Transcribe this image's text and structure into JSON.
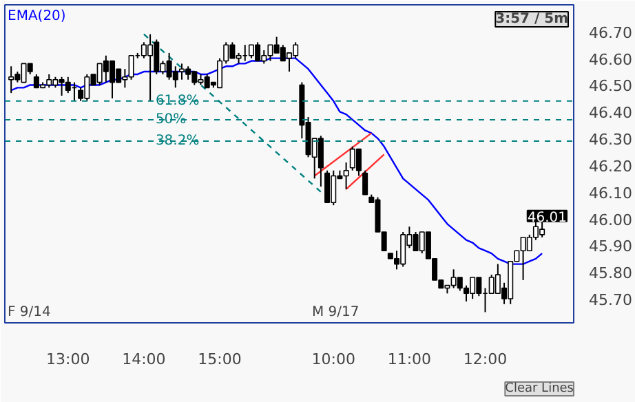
{
  "chart_data": {
    "type": "candlestick",
    "categories": [
      null,
      null,
      null,
      null,
      null,
      null,
      null,
      null,
      null,
      "13:00",
      null,
      null,
      null,
      null,
      null,
      null,
      null,
      null,
      null,
      null,
      null,
      "14:00",
      null,
      null,
      null,
      null,
      null,
      null,
      null,
      null,
      null,
      null,
      null,
      "15:00",
      null,
      null,
      null,
      null,
      null,
      null,
      null,
      null,
      null,
      null,
      null,
      null,
      null,
      null,
      null,
      null,
      null,
      "10:00",
      null,
      null,
      null,
      null,
      null,
      null,
      null,
      null,
      null,
      null,
      null,
      "11:00",
      null,
      null,
      null,
      null,
      null,
      null,
      null,
      null,
      null,
      null,
      null,
      "12:00",
      null,
      null,
      null,
      null,
      null,
      null,
      null,
      null,
      null
    ],
    "ohlc": [
      [
        46.52,
        46.57,
        46.47,
        46.53
      ],
      [
        46.54,
        46.55,
        46.51,
        46.52
      ],
      [
        46.51,
        46.58,
        46.51,
        46.58
      ],
      [
        46.58,
        46.58,
        46.54,
        46.55
      ],
      [
        46.53,
        46.54,
        46.49,
        46.49
      ],
      [
        46.49,
        46.51,
        46.49,
        46.5
      ],
      [
        46.5,
        46.54,
        46.49,
        46.52
      ],
      [
        46.5,
        46.53,
        46.49,
        46.52
      ],
      [
        46.52,
        46.53,
        46.46,
        46.51
      ],
      [
        46.51,
        46.53,
        46.47,
        46.48
      ],
      [
        46.49,
        46.51,
        46.44,
        46.49
      ],
      [
        46.48,
        46.49,
        46.44,
        46.45
      ],
      [
        46.45,
        46.54,
        46.44,
        46.53
      ],
      [
        46.54,
        46.54,
        46.5,
        46.5
      ],
      [
        46.51,
        46.58,
        46.5,
        46.58
      ],
      [
        46.59,
        46.61,
        46.51,
        46.55
      ],
      [
        46.59,
        46.59,
        46.45,
        46.51
      ],
      [
        46.56,
        46.56,
        46.51,
        46.51
      ],
      [
        46.52,
        46.56,
        46.49,
        46.53
      ],
      [
        46.53,
        46.61,
        46.52,
        46.61
      ],
      [
        46.61,
        46.62,
        46.6,
        46.61
      ],
      [
        46.61,
        46.66,
        46.6,
        46.65
      ],
      [
        46.61,
        46.69,
        46.44,
        46.65
      ],
      [
        46.66,
        46.67,
        46.54,
        46.55
      ],
      [
        46.55,
        46.59,
        46.54,
        46.58
      ],
      [
        46.59,
        46.62,
        46.52,
        46.53
      ],
      [
        46.55,
        46.57,
        46.49,
        46.52
      ],
      [
        46.55,
        46.58,
        46.52,
        46.56
      ],
      [
        46.56,
        46.57,
        46.52,
        46.54
      ],
      [
        46.55,
        46.55,
        46.5,
        46.51
      ],
      [
        46.51,
        46.54,
        46.5,
        46.52
      ],
      [
        46.53,
        46.54,
        46.49,
        46.49
      ],
      [
        46.51,
        46.51,
        46.49,
        46.5
      ],
      [
        46.49,
        46.6,
        46.49,
        46.59
      ],
      [
        46.59,
        46.66,
        46.58,
        46.65
      ],
      [
        46.65,
        46.66,
        46.6,
        46.6
      ],
      [
        46.6,
        46.62,
        46.58,
        46.61
      ],
      [
        46.61,
        46.65,
        46.59,
        46.61
      ],
      [
        46.61,
        46.65,
        46.6,
        46.65
      ],
      [
        46.65,
        46.66,
        46.59,
        46.59
      ],
      [
        46.59,
        46.63,
        46.58,
        46.61
      ],
      [
        46.61,
        46.65,
        46.59,
        46.65
      ],
      [
        46.65,
        46.68,
        46.62,
        46.62
      ],
      [
        46.64,
        46.65,
        46.59,
        46.59
      ],
      [
        46.6,
        46.62,
        46.55,
        46.62
      ],
      [
        46.61,
        46.66,
        46.6,
        46.65
      ],
      [
        46.5,
        46.51,
        46.3,
        46.35
      ],
      [
        46.36,
        46.38,
        46.23,
        46.24
      ],
      [
        46.23,
        46.3,
        46.15,
        46.3
      ],
      [
        46.3,
        46.31,
        46.12,
        46.19
      ],
      [
        46.17,
        46.18,
        46.06,
        46.06
      ],
      [
        46.06,
        46.18,
        46.05,
        46.16
      ],
      [
        46.16,
        46.18,
        46.15,
        46.15
      ],
      [
        46.16,
        46.21,
        46.11,
        46.18
      ],
      [
        46.19,
        46.27,
        46.18,
        46.26
      ],
      [
        46.26,
        46.26,
        46.16,
        46.18
      ],
      [
        46.17,
        46.18,
        46.09,
        46.09
      ],
      [
        46.08,
        46.09,
        46.06,
        46.06
      ],
      [
        46.07,
        46.08,
        45.95,
        45.95
      ],
      [
        45.95,
        45.95,
        45.88,
        45.88
      ],
      [
        45.87,
        45.87,
        45.85,
        45.85
      ],
      [
        45.85,
        45.88,
        45.81,
        45.83
      ],
      [
        45.83,
        45.95,
        45.82,
        45.94
      ],
      [
        45.9,
        45.97,
        45.89,
        45.94
      ],
      [
        45.94,
        45.95,
        45.88,
        45.88
      ],
      [
        45.88,
        45.95,
        45.87,
        45.95
      ],
      [
        45.95,
        45.95,
        45.85,
        45.85
      ],
      [
        45.85,
        45.85,
        45.77,
        45.77
      ],
      [
        45.77,
        45.77,
        45.74,
        45.74
      ],
      [
        45.74,
        45.75,
        45.72,
        45.75
      ],
      [
        45.75,
        45.81,
        45.74,
        45.78
      ],
      [
        45.78,
        45.78,
        45.73,
        45.74
      ],
      [
        45.74,
        45.75,
        45.69,
        45.72
      ],
      [
        45.72,
        45.78,
        45.7,
        45.78
      ],
      [
        45.78,
        45.78,
        45.71,
        45.72
      ],
      [
        45.72,
        45.74,
        45.65,
        45.72
      ],
      [
        45.72,
        45.79,
        45.72,
        45.78
      ],
      [
        45.72,
        45.83,
        45.72,
        45.79
      ],
      [
        45.74,
        45.76,
        45.68,
        45.7
      ],
      [
        45.7,
        45.84,
        45.68,
        45.84
      ],
      [
        45.84,
        45.88,
        45.84,
        45.88
      ],
      [
        45.88,
        45.93,
        45.77,
        45.93
      ],
      [
        45.88,
        45.94,
        45.88,
        45.93
      ],
      [
        45.93,
        45.99,
        45.92,
        45.97
      ],
      [
        45.94,
        46.01,
        45.93,
        45.96
      ]
    ],
    "series": [
      {
        "name": "EMA(20)",
        "type": "line",
        "color": "#0000ff",
        "values": [
          46.48,
          46.49,
          46.49,
          46.5,
          46.5,
          46.5,
          46.5,
          46.5,
          46.5,
          46.5,
          46.5,
          46.49,
          46.5,
          46.5,
          46.5,
          46.51,
          46.52,
          46.52,
          46.53,
          46.54,
          46.54,
          46.55,
          46.55,
          46.55,
          46.55,
          46.55,
          46.55,
          46.55,
          46.55,
          46.55,
          46.54,
          46.54,
          46.55,
          46.56,
          46.57,
          46.57,
          46.58,
          46.58,
          46.59,
          46.59,
          46.59,
          46.6,
          46.6,
          46.6,
          46.6,
          46.6,
          46.58,
          46.56,
          46.53,
          46.5,
          46.47,
          46.44,
          46.4,
          46.39,
          46.37,
          46.35,
          46.33,
          46.32,
          46.3,
          46.27,
          46.23,
          46.19,
          46.15,
          46.13,
          46.11,
          46.09,
          46.07,
          46.04,
          46.01,
          45.98,
          45.96,
          45.94,
          45.92,
          45.91,
          45.89,
          45.88,
          45.87,
          45.85,
          45.84,
          45.83,
          45.83,
          45.83,
          45.84,
          45.85,
          45.87
        ]
      },
      {
        "type": "line",
        "color": "#008080",
        "line_style": "dashed",
        "values": [
          null,
          null,
          null,
          null,
          null,
          null,
          null,
          null,
          null,
          null,
          null,
          null,
          null,
          null,
          null,
          null,
          null,
          null,
          null,
          null,
          null,
          46.69,
          null,
          null,
          null,
          null,
          null,
          null,
          null,
          null,
          null,
          null,
          null,
          null,
          null,
          null,
          null,
          null,
          null,
          null,
          null,
          null,
          null,
          null,
          null,
          null,
          null,
          null,
          null,
          46.1,
          null,
          null,
          null,
          null,
          null,
          null,
          null,
          null,
          null,
          null,
          null,
          null,
          null,
          null,
          null,
          null,
          null,
          null,
          null,
          null,
          null,
          null,
          null,
          null,
          null,
          null,
          null,
          null,
          null,
          null,
          null,
          null,
          null,
          null,
          null
        ]
      },
      {
        "type": "line",
        "color": "#ff3030",
        "values": [
          null,
          null,
          null,
          null,
          null,
          null,
          null,
          null,
          null,
          null,
          null,
          null,
          null,
          null,
          null,
          null,
          null,
          null,
          null,
          null,
          null,
          null,
          null,
          null,
          null,
          null,
          null,
          null,
          null,
          null,
          null,
          null,
          null,
          null,
          null,
          null,
          null,
          null,
          null,
          null,
          null,
          null,
          null,
          null,
          null,
          null,
          null,
          null,
          46.16,
          null,
          null,
          null,
          null,
          null,
          null,
          null,
          null,
          46.32,
          null,
          null,
          null,
          null,
          null,
          null,
          null,
          null,
          null,
          null,
          null,
          null,
          null,
          null,
          null,
          null,
          null,
          null,
          null,
          null,
          null,
          null,
          null,
          null,
          null,
          null,
          null
        ]
      },
      {
        "type": "line",
        "color": "#ff3030",
        "values": [
          null,
          null,
          null,
          null,
          null,
          null,
          null,
          null,
          null,
          null,
          null,
          null,
          null,
          null,
          null,
          null,
          null,
          null,
          null,
          null,
          null,
          null,
          null,
          null,
          null,
          null,
          null,
          null,
          null,
          null,
          null,
          null,
          null,
          null,
          null,
          null,
          null,
          null,
          null,
          null,
          null,
          null,
          null,
          null,
          null,
          null,
          null,
          null,
          null,
          null,
          null,
          null,
          null,
          46.11,
          null,
          null,
          null,
          null,
          null,
          46.24,
          null,
          null,
          null,
          null,
          null,
          null,
          null,
          null,
          null,
          null,
          null,
          null,
          null,
          null,
          null,
          null,
          null,
          null,
          null,
          null,
          null,
          null,
          null,
          null,
          null
        ]
      }
    ],
    "ylim": [
      45.61,
      46.8
    ],
    "yticks": [
      {
        "value": 45.7,
        "label": "45.70"
      },
      {
        "value": 45.8,
        "label": "45.80"
      },
      {
        "value": 45.9,
        "label": "45.90"
      },
      {
        "value": 46.0,
        "label": "46.00"
      },
      {
        "value": 46.1,
        "label": "46.10"
      },
      {
        "value": 46.2,
        "label": "46.20"
      },
      {
        "value": 46.3,
        "label": "46.30"
      },
      {
        "value": 46.4,
        "label": "46.40"
      },
      {
        "value": 46.5,
        "label": "46.50"
      },
      {
        "value": 46.6,
        "label": "46.60"
      },
      {
        "value": 46.7,
        "label": "46.70"
      }
    ],
    "ref_lines": [
      {
        "axis": "y",
        "value": 46.44,
        "color": "#008080",
        "line_style": "dashed"
      },
      {
        "axis": "y",
        "value": 46.37,
        "color": "#008080",
        "line_style": "dashed"
      },
      {
        "axis": "y",
        "value": 46.29,
        "color": "#008080",
        "line_style": "dashed"
      }
    ],
    "annotations": [
      {
        "text": "61.8%",
        "y": 46.44
      },
      {
        "text": "50%",
        "y": 46.37
      },
      {
        "text": "38.2%",
        "y": 46.29
      },
      "46.01",
      "F 9/14",
      "M 9/17",
      "3:57 / 5m",
      "Clear Lines"
    ],
    "legend": "top left",
    "grid": false
  }
}
